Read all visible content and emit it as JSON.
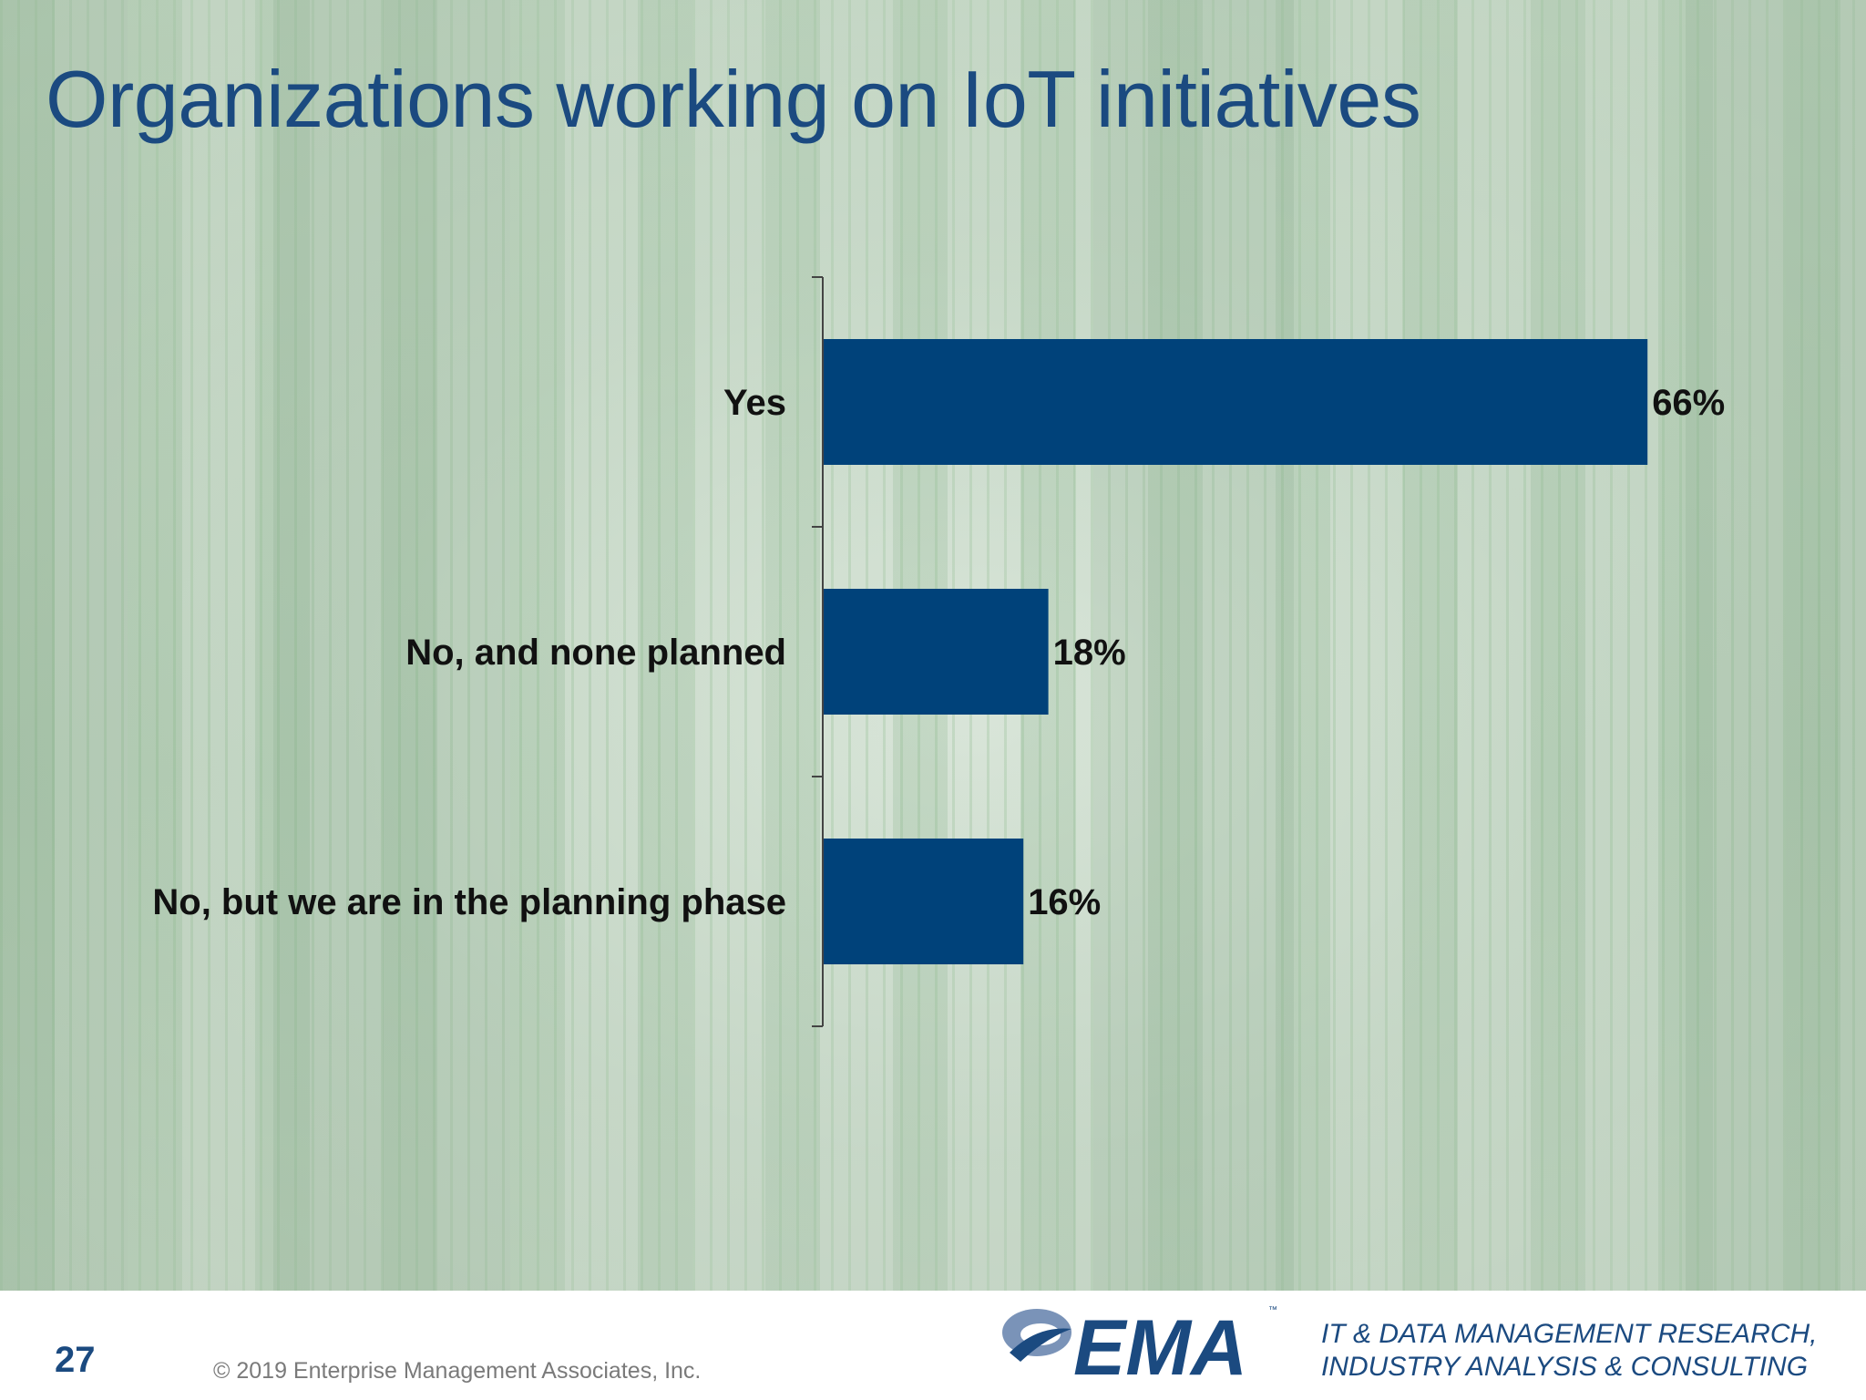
{
  "slide": {
    "title": "Organizations working on IoT initiatives",
    "page_number": "27",
    "copyright": "© 2019 Enterprise Management Associates, Inc.",
    "logo_text": "EMA",
    "logo_mark": "™",
    "tagline_line1": "IT & DATA MANAGEMENT RESEARCH,",
    "tagline_line2": "INDUSTRY ANALYSIS & CONSULTING"
  },
  "colors": {
    "bar": "#00427a",
    "title": "#1b4a80",
    "axis": "#444444"
  },
  "chart_data": {
    "type": "bar",
    "orientation": "horizontal",
    "categories": [
      "Yes",
      "No, and none planned",
      "No, but we are in the planning phase"
    ],
    "values": [
      66,
      18,
      16
    ],
    "value_labels": [
      "66%",
      "18%",
      "16%"
    ],
    "unit": "%",
    "xlim": [
      0,
      100
    ],
    "grid": false,
    "legend": "none"
  }
}
